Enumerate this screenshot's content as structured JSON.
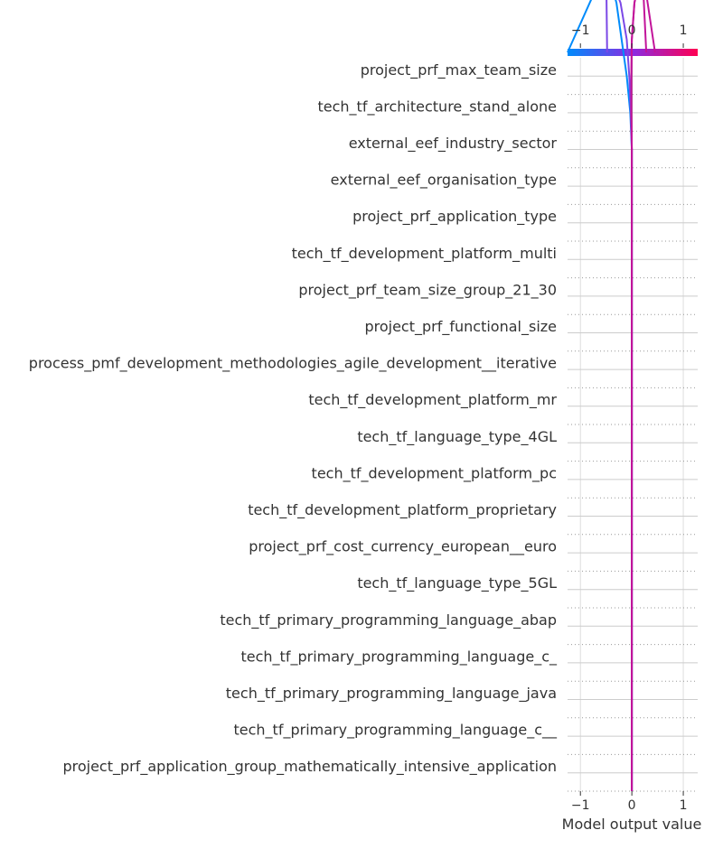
{
  "chart_data": {
    "type": "line",
    "subtype": "shap-decision-plot",
    "title": "",
    "xlabel": "Model output value",
    "ylabel": "",
    "xlim": [
      -1.25,
      1.28
    ],
    "xticks": [
      -1,
      0,
      1
    ],
    "xtick_labels": [
      "−1",
      "0",
      "1"
    ],
    "base_value": 0,
    "grid": true,
    "colorbar": {
      "position": "top",
      "colors": [
        "#008bfb",
        "#8a2be2",
        "#ff0052"
      ]
    },
    "features": [
      "project_prf_max_team_size",
      "tech_tf_architecture_stand_alone",
      "external_eef_industry_sector",
      "external_eef_organisation_type",
      "project_prf_application_type",
      "tech_tf_development_platform_multi",
      "project_prf_team_size_group_21_30",
      "project_prf_functional_size",
      "process_pmf_development_methodologies_agile_development__iterative",
      "tech_tf_development_platform_mr",
      "tech_tf_language_type_4GL",
      "tech_tf_development_platform_pc",
      "tech_tf_development_platform_proprietary",
      "project_prf_cost_currency_european__euro",
      "tech_tf_language_type_5GL",
      "tech_tf_primary_programming_language_abap",
      "tech_tf_primary_programming_language_c_",
      "tech_tf_primary_programming_language_java",
      "tech_tf_primary_programming_language_c__",
      "project_prf_application_group_mathematically_intensive_application"
    ],
    "series": [
      {
        "color": "#008bfb",
        "path": [
          0,
          0,
          0,
          0,
          0,
          0,
          0,
          0,
          0,
          0,
          0,
          0,
          0,
          0,
          0,
          0,
          0,
          0,
          0,
          -0.03,
          -0.1,
          -0.2,
          -0.3,
          -0.5,
          -1.25
        ]
      },
      {
        "color": "#7b48e6",
        "path": [
          0,
          0,
          0,
          0,
          0,
          0,
          0,
          0,
          0,
          0,
          0,
          0,
          0,
          0,
          0,
          0,
          0,
          0,
          0,
          -0.02,
          -0.05,
          -0.1,
          -0.22,
          -0.5,
          -0.48
        ]
      },
      {
        "color": "#c2149a",
        "path": [
          0,
          0,
          0,
          0,
          0,
          0,
          0,
          0,
          0,
          0,
          0,
          0,
          0,
          0,
          0,
          0,
          0,
          0,
          0,
          -0.01,
          -0.01,
          0.0,
          0.05,
          0.2,
          0.45
        ]
      },
      {
        "color": "#c2149a",
        "path": [
          0,
          0,
          0,
          0,
          0,
          0,
          0,
          0,
          0,
          0,
          0,
          0,
          0,
          0,
          0,
          0,
          0,
          0,
          0,
          -0.01,
          -0.01,
          0.0,
          0.05,
          0.2,
          0.28
        ]
      }
    ]
  }
}
